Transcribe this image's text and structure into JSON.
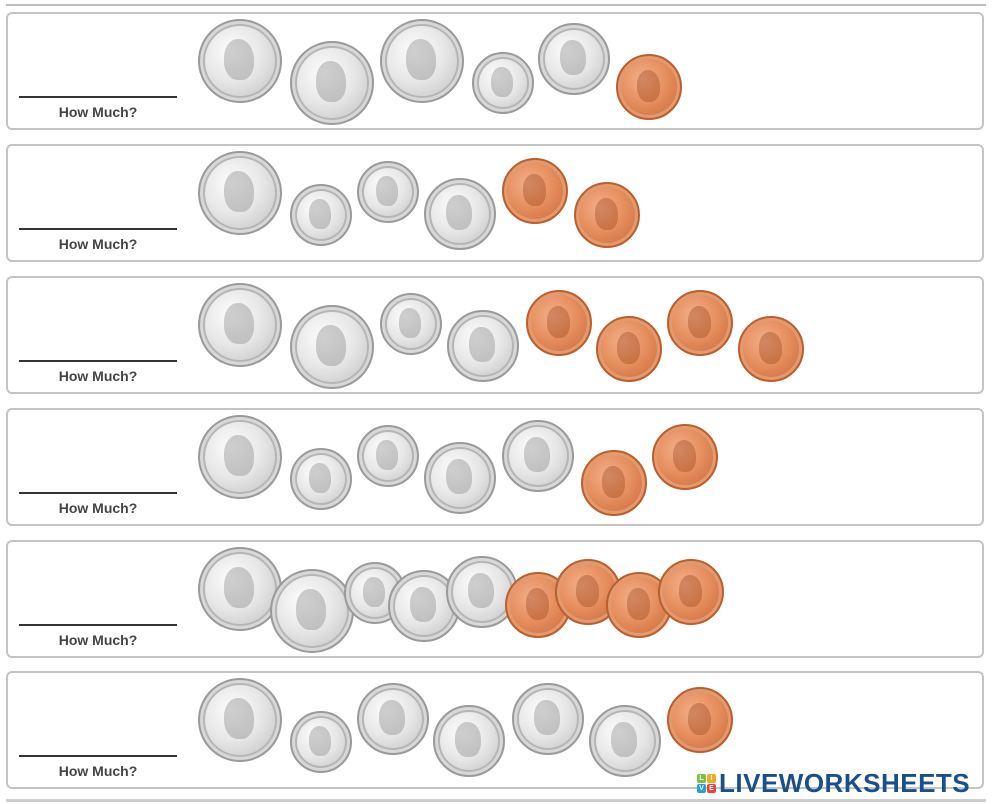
{
  "worksheet": {
    "prompt_label": "How Much?",
    "rows": [
      {
        "id": 1,
        "coins": [
          "quarter",
          "quarter",
          "quarter",
          "dime",
          "nickel",
          "penny"
        ],
        "answer": ""
      },
      {
        "id": 2,
        "coins": [
          "quarter",
          "dime",
          "dime",
          "nickel",
          "penny",
          "penny"
        ],
        "answer": ""
      },
      {
        "id": 3,
        "coins": [
          "quarter",
          "quarter",
          "dime",
          "nickel",
          "penny",
          "penny",
          "penny",
          "penny"
        ],
        "answer": ""
      },
      {
        "id": 4,
        "coins": [
          "quarter",
          "dime",
          "dime",
          "nickel",
          "nickel",
          "penny",
          "penny"
        ],
        "answer": ""
      },
      {
        "id": 5,
        "coins": [
          "quarter",
          "quarter",
          "dime",
          "nickel",
          "nickel",
          "penny",
          "penny",
          "penny",
          "penny"
        ],
        "answer": ""
      },
      {
        "id": 6,
        "coins": [
          "quarter",
          "dime",
          "nickel",
          "nickel",
          "nickel",
          "nickel",
          "penny"
        ],
        "answer": ""
      }
    ]
  },
  "branding": {
    "logo_text": "LIVEWORKSHEETS",
    "badge_letters": [
      "L",
      "I",
      "V",
      "E"
    ],
    "badge_colors": [
      "#7cc242",
      "#f7a823",
      "#2a9fd8",
      "#e8443a"
    ],
    "text_color": "#1a4f8a"
  },
  "colors": {
    "border": "#c4c4c4",
    "label_text": "#444444",
    "silver": "#d9d9d9",
    "copper": "#e0834f"
  }
}
